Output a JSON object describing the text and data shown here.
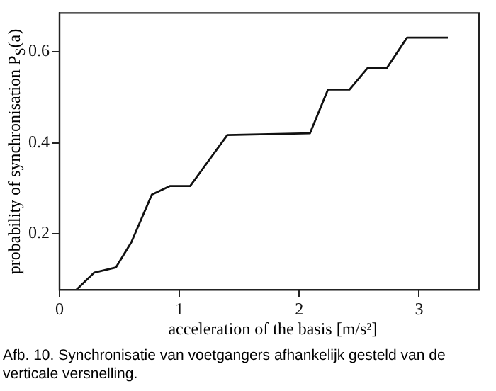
{
  "chart_data": {
    "type": "line",
    "xlabel": "acceleration of the basis [m/s²]",
    "ylabel": "probability of synchronisation P$_{S}$(a)",
    "annotations": [
      "Afb. 10. Synchronisatie van voetgangers afhankelijk gesteld van de verticale versnelling."
    ],
    "x": [
      0.14,
      0.29,
      0.47,
      0.6,
      0.77,
      0.92,
      1.09,
      1.4,
      2.09,
      2.24,
      2.42,
      2.57,
      2.73,
      2.9,
      3.24
    ],
    "series": [
      {
        "color": "#111111",
        "values": [
          0.077,
          0.115,
          0.126,
          0.182,
          0.286,
          0.305,
          0.305,
          0.417,
          0.421,
          0.517,
          0.517,
          0.564,
          0.564,
          0.631,
          0.631
        ]
      }
    ],
    "xlim": [
      0,
      3.5
    ],
    "xticks": [
      0,
      1,
      2,
      3
    ],
    "ylim": [
      0.077,
      0.685
    ],
    "yticks": [
      0.2,
      0.4,
      0.6
    ],
    "grid": false,
    "legend": false,
    "marker": "none",
    "line_style": "solid"
  }
}
